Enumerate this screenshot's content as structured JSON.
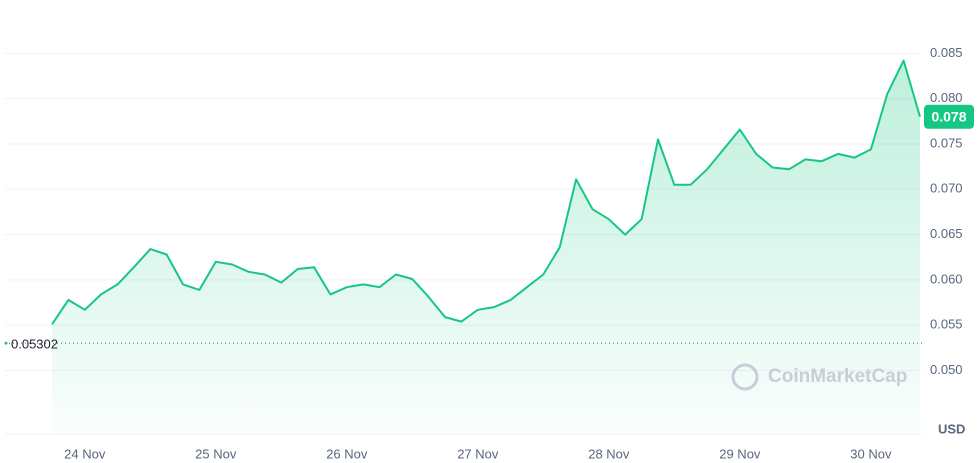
{
  "chart_data": {
    "type": "line",
    "categories": [
      null,
      null,
      "24 Nov",
      null,
      null,
      null,
      null,
      null,
      null,
      null,
      "25 Nov",
      null,
      null,
      null,
      null,
      null,
      null,
      null,
      "26 Nov",
      null,
      null,
      null,
      null,
      null,
      null,
      null,
      "27 Nov",
      null,
      null,
      null,
      null,
      null,
      null,
      null,
      "28 Nov",
      null,
      null,
      null,
      null,
      null,
      null,
      null,
      "29 Nov",
      null,
      null,
      null,
      null,
      null,
      null,
      null,
      "30 Nov",
      null,
      null,
      null
    ],
    "series": [
      {
        "color": "#16c784",
        "values": [
          0.0551,
          0.0578,
          0.0567,
          0.0584,
          0.0595,
          0.0614,
          0.0634,
          0.0628,
          0.0595,
          0.0589,
          0.062,
          0.0617,
          0.0609,
          0.0606,
          0.0597,
          0.0612,
          0.0614,
          0.0584,
          0.0592,
          0.0595,
          0.0592,
          0.0606,
          0.0601,
          0.0581,
          0.0559,
          0.0554,
          0.0567,
          0.057,
          0.0578,
          0.0592,
          0.0606,
          0.0636,
          0.0711,
          0.0678,
          0.0667,
          0.065,
          0.0667,
          0.0755,
          0.0705,
          0.0705,
          0.0722,
          0.0744,
          0.0766,
          0.0739,
          0.0724,
          0.0722,
          0.0733,
          0.0731,
          0.0739,
          0.0735,
          0.0744,
          0.0805,
          0.0842,
          0.078
        ]
      }
    ],
    "ylim": [
      0.043,
      0.09
    ],
    "yticks": [
      {
        "value": 0.05,
        "label": "0.050"
      },
      0.055,
      {
        "value": 0.06,
        "label": "0.060"
      },
      0.065,
      {
        "value": 0.07,
        "label": "0.070"
      },
      0.075,
      {
        "value": 0.08,
        "label": "0.080"
      },
      0.085
    ],
    "grid": true,
    "reference_value": 0.05302,
    "currency": "USD",
    "watermark": "CoinMarketCap"
  }
}
